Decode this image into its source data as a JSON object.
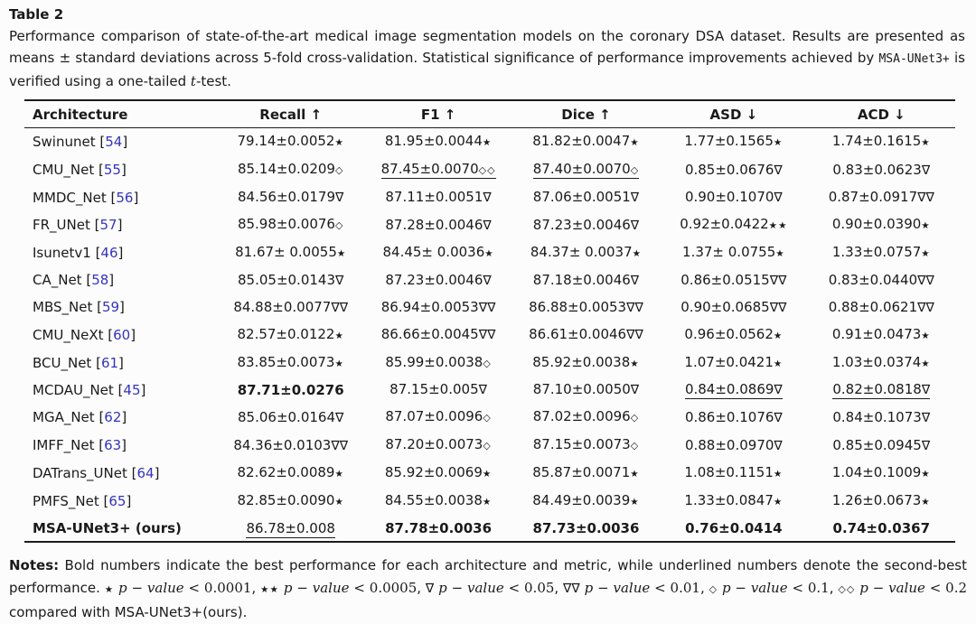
{
  "colors": {
    "text": "#1a1a1a",
    "citation_blue": "#3434bd",
    "background": "#fcfcfc"
  },
  "title": {
    "label": "Table 2"
  },
  "caption": {
    "part1": "Performance comparison of state-of-the-art medical image segmentation models on the coronary DSA dataset. Results are presented as means ± standard deviations across 5-fold cross-validation. Statistical significance of performance improvements achieved by ",
    "code": "MSA-UNet3+",
    "part2": " is verified using a one-tailed ",
    "italic_term": "t",
    "part3": "-test."
  },
  "table": {
    "headers": [
      "Architecture",
      "Recall ↑",
      "F1 ↑",
      "Dice ↑",
      "ASD ↓",
      "ACD ↓"
    ],
    "rows": [
      {
        "arch": "Swinunet",
        "ref": "54",
        "arch_bold": false,
        "cells": [
          {
            "v": "79.14±0.0052",
            "s": "★"
          },
          {
            "v": "81.95±0.0044",
            "s": "★"
          },
          {
            "v": "81.82±0.0047",
            "s": "★"
          },
          {
            "v": "1.77±0.1565",
            "s": "★"
          },
          {
            "v": "1.74±0.1615",
            "s": "★"
          }
        ]
      },
      {
        "arch": "CMU_Net",
        "ref": "55",
        "arch_bold": false,
        "cells": [
          {
            "v": "85.14±0.0209",
            "s": "◇"
          },
          {
            "v": "87.45±0.0070",
            "s": "◇◇",
            "u": true
          },
          {
            "v": "87.40±0.0070",
            "s": "◇",
            "u": true
          },
          {
            "v": "0.85±0.0676",
            "s": "∇"
          },
          {
            "v": "0.83±0.0623",
            "s": "∇"
          }
        ]
      },
      {
        "arch": "MMDC_Net",
        "ref": "56",
        "arch_bold": false,
        "cells": [
          {
            "v": "84.56±0.0179",
            "s": "∇"
          },
          {
            "v": "87.11±0.0051",
            "s": "∇"
          },
          {
            "v": "87.06±0.0051",
            "s": "∇"
          },
          {
            "v": "0.90±0.1070",
            "s": "∇"
          },
          {
            "v": "0.87±0.0917",
            "s": "∇∇"
          }
        ]
      },
      {
        "arch": "FR_UNet",
        "ref": "57",
        "arch_bold": false,
        "cells": [
          {
            "v": "85.98±0.0076",
            "s": "◇"
          },
          {
            "v": "87.28±0.0046",
            "s": "∇"
          },
          {
            "v": "87.23±0.0046",
            "s": "∇"
          },
          {
            "v": "0.92±0.0422",
            "s": "★★"
          },
          {
            "v": "0.90±0.0390",
            "s": "★"
          }
        ]
      },
      {
        "arch": "Isunetv1",
        "ref": "46",
        "arch_bold": false,
        "cells": [
          {
            "v": "81.67± 0.0055",
            "s": "★"
          },
          {
            "v": "84.45± 0.0036",
            "s": "★"
          },
          {
            "v": "84.37± 0.0037",
            "s": "★"
          },
          {
            "v": "1.37± 0.0755",
            "s": "★"
          },
          {
            "v": "1.33±0.0757",
            "s": "★"
          }
        ]
      },
      {
        "arch": "CA_Net",
        "ref": "58",
        "arch_bold": false,
        "cells": [
          {
            "v": "85.05±0.0143",
            "s": "∇"
          },
          {
            "v": "87.23±0.0046",
            "s": "∇"
          },
          {
            "v": "87.18±0.0046",
            "s": "∇"
          },
          {
            "v": "0.86±0.0515",
            "s": "∇∇"
          },
          {
            "v": "0.83±0.0440",
            "s": "∇∇"
          }
        ]
      },
      {
        "arch": "MBS_Net",
        "ref": "59",
        "arch_bold": false,
        "cells": [
          {
            "v": "84.88±0.0077",
            "s": "∇∇"
          },
          {
            "v": "86.94±0.0053",
            "s": "∇∇"
          },
          {
            "v": "86.88±0.0053",
            "s": "∇∇"
          },
          {
            "v": "0.90±0.0685",
            "s": "∇∇"
          },
          {
            "v": "0.88±0.0621",
            "s": "∇∇"
          }
        ]
      },
      {
        "arch": "CMU_NeXt",
        "ref": "60",
        "arch_bold": false,
        "cells": [
          {
            "v": "82.57±0.0122",
            "s": "★"
          },
          {
            "v": "86.66±0.0045",
            "s": "∇∇"
          },
          {
            "v": "86.61±0.0046",
            "s": "∇∇"
          },
          {
            "v": "0.96±0.0562",
            "s": "★"
          },
          {
            "v": "0.91±0.0473",
            "s": "★"
          }
        ]
      },
      {
        "arch": "BCU_Net",
        "ref": "61",
        "arch_bold": false,
        "cells": [
          {
            "v": "83.85±0.0073",
            "s": "★"
          },
          {
            "v": "85.99±0.0038",
            "s": "◇"
          },
          {
            "v": "85.92±0.0038",
            "s": "★"
          },
          {
            "v": "1.07±0.0421",
            "s": "★"
          },
          {
            "v": "1.03±0.0374",
            "s": "★"
          }
        ]
      },
      {
        "arch": "MCDAU_Net",
        "ref": "45",
        "arch_bold": false,
        "cells": [
          {
            "v": "87.71±0.0276",
            "s": "",
            "b": true
          },
          {
            "v": "87.15±0.005",
            "s": "∇"
          },
          {
            "v": "87.10±0.0050",
            "s": "∇"
          },
          {
            "v": "0.84±0.0869",
            "s": "∇",
            "u": true
          },
          {
            "v": "0.82±0.0818",
            "s": "∇",
            "u": true
          }
        ]
      },
      {
        "arch": "MGA_Net",
        "ref": "62",
        "arch_bold": false,
        "cells": [
          {
            "v": "85.06±0.0164",
            "s": "∇"
          },
          {
            "v": "87.07±0.0096",
            "s": "◇"
          },
          {
            "v": "87.02±0.0096",
            "s": "◇"
          },
          {
            "v": "0.86±0.1076",
            "s": "∇"
          },
          {
            "v": "0.84±0.1073",
            "s": "∇"
          }
        ]
      },
      {
        "arch": "IMFF_Net",
        "ref": "63",
        "arch_bold": false,
        "cells": [
          {
            "v": "84.36±0.0103",
            "s": "∇∇"
          },
          {
            "v": "87.20±0.0073",
            "s": "◇"
          },
          {
            "v": "87.15±0.0073",
            "s": "◇"
          },
          {
            "v": "0.88±0.0970",
            "s": "∇"
          },
          {
            "v": "0.85±0.0945",
            "s": "∇"
          }
        ]
      },
      {
        "arch": "DATrans_UNet",
        "ref": "64",
        "arch_bold": false,
        "cells": [
          {
            "v": "82.62±0.0089",
            "s": "★"
          },
          {
            "v": "85.92±0.0069",
            "s": "★"
          },
          {
            "v": "85.87±0.0071",
            "s": "★"
          },
          {
            "v": "1.08±0.1151",
            "s": "★"
          },
          {
            "v": "1.04±0.1009",
            "s": "★"
          }
        ]
      },
      {
        "arch": "PMFS_Net",
        "ref": "65",
        "arch_bold": false,
        "cells": [
          {
            "v": "82.85±0.0090",
            "s": "★"
          },
          {
            "v": "84.55±0.0038",
            "s": "★"
          },
          {
            "v": "84.49±0.0039",
            "s": "★"
          },
          {
            "v": "1.33±0.0847",
            "s": "★"
          },
          {
            "v": "1.26±0.0673",
            "s": "★"
          }
        ]
      },
      {
        "arch": "MSA-UNet3+ (ours)",
        "ref": null,
        "arch_bold": true,
        "cells": [
          {
            "v": "86.78±0.008",
            "s": "",
            "u": true
          },
          {
            "v": "87.78±0.0036",
            "s": "",
            "b": true
          },
          {
            "v": "87.73±0.0036",
            "s": "",
            "b": true
          },
          {
            "v": "0.76±0.0414",
            "s": "",
            "b": true
          },
          {
            "v": "0.74±0.0367",
            "s": "",
            "b": true
          }
        ]
      }
    ]
  },
  "notes": {
    "label": "Notes:",
    "text1": " Bold numbers indicate the best performance for each architecture and metric, while underlined numbers denote the second-best performance. ",
    "pvalue_label": "p − value",
    "sig_items": [
      {
        "sym": "★",
        "cond": "< 0.0001"
      },
      {
        "sym": "★★",
        "cond": "< 0.0005"
      },
      {
        "sym": "∇",
        "cond": "< 0.05"
      },
      {
        "sym": "∇∇",
        "cond": "< 0.01"
      },
      {
        "sym": "◇",
        "cond": "< 0.1"
      },
      {
        "sym": "◇◇",
        "cond": "< 0.2"
      }
    ],
    "tail": " compared with MSA-UNet3+(ours)."
  }
}
